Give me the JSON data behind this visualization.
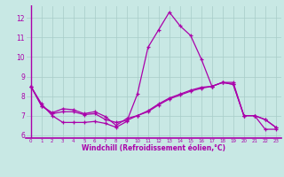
{
  "title": "",
  "xlabel": "Windchill (Refroidissement éolien,°C)",
  "ylabel": "",
  "xlim": [
    -0.5,
    23.5
  ],
  "ylim": [
    5.85,
    12.65
  ],
  "yticks": [
    6,
    7,
    8,
    9,
    10,
    11,
    12
  ],
  "xticks": [
    0,
    1,
    2,
    3,
    4,
    5,
    6,
    7,
    8,
    9,
    10,
    11,
    12,
    13,
    14,
    15,
    16,
    17,
    18,
    19,
    20,
    21,
    22,
    23
  ],
  "background_color": "#c8e8e4",
  "grid_color": "#a8ccc8",
  "line_color": "#aa00aa",
  "line1_x": [
    0,
    1,
    2,
    3,
    4,
    5,
    6,
    7,
    8,
    9,
    10,
    11,
    12,
    13,
    14,
    15,
    16,
    17,
    18,
    19,
    20,
    21,
    22,
    23
  ],
  "line1_y": [
    8.5,
    7.6,
    7.0,
    6.65,
    6.65,
    6.65,
    6.7,
    6.6,
    6.4,
    6.7,
    8.1,
    10.5,
    11.4,
    12.3,
    11.6,
    11.1,
    9.9,
    8.5,
    8.7,
    8.7,
    7.0,
    7.0,
    6.3,
    6.3
  ],
  "line2_x": [
    0,
    1,
    2,
    3,
    4,
    5,
    6,
    7,
    8,
    9,
    10,
    11,
    12,
    13,
    14,
    15,
    16,
    17,
    18,
    19,
    20,
    21,
    22,
    23
  ],
  "line2_y": [
    8.5,
    7.5,
    7.1,
    7.2,
    7.2,
    7.05,
    7.1,
    6.8,
    6.65,
    6.75,
    7.0,
    7.25,
    7.6,
    7.9,
    8.1,
    8.3,
    8.45,
    8.5,
    8.7,
    8.6,
    7.0,
    7.0,
    6.8,
    6.4
  ],
  "line3_x": [
    0,
    1,
    2,
    3,
    4,
    5,
    6,
    7,
    8,
    9,
    10,
    11,
    12,
    13,
    14,
    15,
    16,
    17,
    18,
    19,
    20,
    21,
    22,
    23
  ],
  "line3_y": [
    8.5,
    7.5,
    7.15,
    7.35,
    7.3,
    7.1,
    7.2,
    6.95,
    6.5,
    6.85,
    7.0,
    7.2,
    7.55,
    7.85,
    8.05,
    8.25,
    8.4,
    8.5,
    8.7,
    8.6,
    7.0,
    7.0,
    6.8,
    6.4
  ]
}
